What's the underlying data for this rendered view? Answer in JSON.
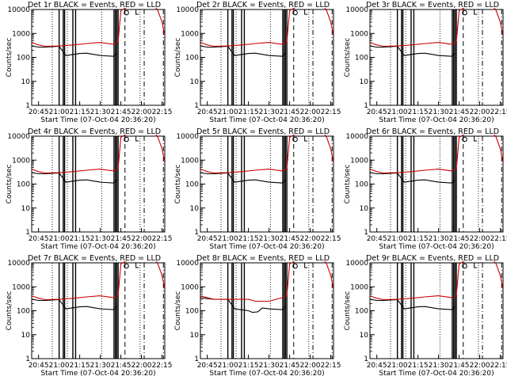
{
  "chart_data": [
    {
      "type": "line",
      "title": "Det 1r BLACK = Events, RED = LLD",
      "xlabel": "Start Time (07-Oct-04 20:36:20)",
      "ylabel": "Counts/sec",
      "yscale": "log",
      "ylim": [
        1,
        10000
      ],
      "xlim": [
        "20:40",
        "22:17"
      ],
      "xticks": [
        "20:45",
        "21:00",
        "21:15",
        "21:30",
        "21:45",
        "22:00",
        "22:15"
      ],
      "yticks": [
        "1",
        "10",
        "100",
        "1000",
        "10000"
      ],
      "series": [
        {
          "name": "BLACK",
          "color": "#000000",
          "x": [
            "20:37",
            "20:40",
            "20:45",
            "20:50",
            "21:00",
            "21:05",
            "21:15",
            "21:20",
            "21:30",
            "21:40",
            "21:42"
          ],
          "y": [
            380,
            300,
            270,
            270,
            290,
            120,
            145,
            150,
            120,
            110,
            150
          ]
        },
        {
          "name": "RED",
          "color": "#cc0000",
          "x": [
            "20:37",
            "20:40",
            "20:45",
            "20:50",
            "21:00",
            "21:10",
            "21:20",
            "21:30",
            "21:40",
            "21:43",
            "21:45",
            "21:50",
            "22:00",
            "22:10",
            "22:12",
            "22:15",
            "22:17"
          ],
          "y": [
            550,
            420,
            330,
            290,
            300,
            330,
            380,
            420,
            350,
            450,
            9000,
            13000,
            13000,
            13000,
            9000,
            3000,
            800
          ]
        }
      ]
    },
    {
      "type": "line",
      "title": "Det 2r BLACK = Events, RED = LLD",
      "xlabel": "Start Time (07-Oct-04 20:36:20)",
      "ylabel": "Counts/sec",
      "yscale": "log",
      "ylim": [
        1,
        10000
      ],
      "xlim": [
        "20:40",
        "22:17"
      ],
      "xticks": [
        "20:45",
        "21:00",
        "21:15",
        "21:30",
        "21:45",
        "22:00",
        "22:15"
      ],
      "yticks": [
        "1",
        "10",
        "100",
        "1000",
        "10000"
      ],
      "series": [
        {
          "name": "BLACK",
          "color": "#000000",
          "x": [
            "20:37",
            "20:40",
            "20:45",
            "20:50",
            "21:00",
            "21:05",
            "21:15",
            "21:20",
            "21:30",
            "21:40",
            "21:42"
          ],
          "y": [
            380,
            300,
            270,
            270,
            290,
            120,
            145,
            150,
            120,
            110,
            150
          ]
        },
        {
          "name": "RED",
          "color": "#cc0000",
          "x": [
            "20:37",
            "20:40",
            "20:45",
            "20:50",
            "21:00",
            "21:10",
            "21:20",
            "21:30",
            "21:40",
            "21:43",
            "21:45",
            "21:50",
            "22:00",
            "22:10",
            "22:12",
            "22:15",
            "22:17"
          ],
          "y": [
            550,
            420,
            330,
            290,
            300,
            330,
            380,
            420,
            350,
            450,
            9000,
            13000,
            13000,
            13000,
            9000,
            3000,
            800
          ]
        }
      ]
    },
    {
      "type": "line",
      "title": "Det 3r BLACK = Events, RED = LLD",
      "xlabel": "Start Time (07-Oct-04 20:36:20)",
      "ylabel": "Counts/sec",
      "yscale": "log",
      "ylim": [
        1,
        10000
      ],
      "xlim": [
        "20:40",
        "22:17"
      ],
      "xticks": [
        "20:45",
        "21:00",
        "21:15",
        "21:30",
        "21:45",
        "22:00",
        "22:15"
      ],
      "yticks": [
        "1",
        "10",
        "100",
        "1000",
        "10000"
      ],
      "series": [
        {
          "name": "BLACK",
          "color": "#000000",
          "x": [
            "20:37",
            "20:40",
            "20:45",
            "20:50",
            "21:00",
            "21:05",
            "21:15",
            "21:20",
            "21:30",
            "21:40",
            "21:42"
          ],
          "y": [
            380,
            300,
            270,
            270,
            290,
            120,
            145,
            150,
            120,
            110,
            150
          ]
        },
        {
          "name": "RED",
          "color": "#cc0000",
          "x": [
            "20:37",
            "20:40",
            "20:45",
            "20:50",
            "21:00",
            "21:10",
            "21:20",
            "21:30",
            "21:40",
            "21:43",
            "21:45",
            "21:50",
            "22:00",
            "22:10",
            "22:12",
            "22:15",
            "22:17"
          ],
          "y": [
            550,
            420,
            330,
            290,
            300,
            330,
            380,
            420,
            350,
            450,
            9000,
            13000,
            13000,
            13000,
            9000,
            3000,
            800
          ]
        }
      ]
    },
    {
      "type": "line",
      "title": "Det 4r BLACK = Events, RED = LLD",
      "xlabel": "Start Time (07-Oct-04 20:36:20)",
      "ylabel": "Counts/sec",
      "yscale": "log",
      "ylim": [
        1,
        10000
      ],
      "xlim": [
        "20:40",
        "22:17"
      ],
      "xticks": [
        "20:45",
        "21:00",
        "21:15",
        "21:30",
        "21:45",
        "22:00",
        "22:15"
      ],
      "yticks": [
        "1",
        "10",
        "100",
        "1000",
        "10000"
      ],
      "series": [
        {
          "name": "BLACK",
          "color": "#000000",
          "x": [
            "20:37",
            "20:40",
            "20:45",
            "20:50",
            "21:00",
            "21:05",
            "21:15",
            "21:20",
            "21:30",
            "21:40",
            "21:42"
          ],
          "y": [
            380,
            300,
            270,
            270,
            290,
            120,
            145,
            150,
            120,
            110,
            150
          ]
        },
        {
          "name": "RED",
          "color": "#cc0000",
          "x": [
            "20:37",
            "20:40",
            "20:45",
            "20:50",
            "21:00",
            "21:10",
            "21:20",
            "21:30",
            "21:40",
            "21:43",
            "21:45",
            "21:50",
            "22:00",
            "22:10",
            "22:12",
            "22:15",
            "22:17"
          ],
          "y": [
            550,
            420,
            330,
            290,
            300,
            330,
            380,
            420,
            350,
            450,
            9000,
            13000,
            13000,
            13000,
            9000,
            3000,
            800
          ]
        }
      ]
    },
    {
      "type": "line",
      "title": "Det 5r BLACK = Events, RED = LLD",
      "xlabel": "Start Time (07-Oct-04 20:36:20)",
      "ylabel": "Counts/sec",
      "yscale": "log",
      "ylim": [
        1,
        10000
      ],
      "xlim": [
        "20:40",
        "22:17"
      ],
      "xticks": [
        "20:45",
        "21:00",
        "21:15",
        "21:30",
        "21:45",
        "22:00",
        "22:15"
      ],
      "yticks": [
        "1",
        "10",
        "100",
        "1000",
        "10000"
      ],
      "series": [
        {
          "name": "BLACK",
          "color": "#000000",
          "x": [
            "20:37",
            "20:40",
            "20:45",
            "20:50",
            "21:00",
            "21:05",
            "21:15",
            "21:20",
            "21:30",
            "21:40",
            "21:42"
          ],
          "y": [
            380,
            300,
            270,
            270,
            290,
            120,
            145,
            150,
            120,
            110,
            150
          ]
        },
        {
          "name": "RED",
          "color": "#cc0000",
          "x": [
            "20:37",
            "20:40",
            "20:45",
            "20:50",
            "21:00",
            "21:10",
            "21:20",
            "21:30",
            "21:40",
            "21:43",
            "21:45",
            "21:50",
            "22:00",
            "22:10",
            "22:12",
            "22:15",
            "22:17"
          ],
          "y": [
            550,
            420,
            330,
            290,
            300,
            330,
            380,
            420,
            350,
            450,
            9000,
            13000,
            13000,
            13000,
            9000,
            3000,
            800
          ]
        }
      ]
    },
    {
      "type": "line",
      "title": "Det 6r BLACK = Events, RED = LLD",
      "xlabel": "Start Time (07-Oct-04 20:36:20)",
      "ylabel": "Counts/sec",
      "yscale": "log",
      "ylim": [
        1,
        10000
      ],
      "xlim": [
        "20:40",
        "22:17"
      ],
      "xticks": [
        "20:45",
        "21:00",
        "21:15",
        "21:30",
        "21:45",
        "22:00",
        "22:15"
      ],
      "yticks": [
        "1",
        "10",
        "100",
        "1000",
        "10000"
      ],
      "series": [
        {
          "name": "BLACK",
          "color": "#000000",
          "x": [
            "20:37",
            "20:40",
            "20:45",
            "20:50",
            "21:00",
            "21:05",
            "21:15",
            "21:20",
            "21:30",
            "21:40",
            "21:42"
          ],
          "y": [
            380,
            300,
            270,
            270,
            290,
            120,
            145,
            150,
            120,
            110,
            150
          ]
        },
        {
          "name": "RED",
          "color": "#cc0000",
          "x": [
            "20:37",
            "20:40",
            "20:45",
            "20:50",
            "21:00",
            "21:10",
            "21:20",
            "21:30",
            "21:40",
            "21:43",
            "21:45",
            "21:50",
            "22:00",
            "22:10",
            "22:12",
            "22:15",
            "22:17"
          ],
          "y": [
            550,
            420,
            330,
            290,
            300,
            330,
            380,
            420,
            350,
            450,
            9000,
            13000,
            13000,
            13000,
            9000,
            3000,
            800
          ]
        }
      ]
    },
    {
      "type": "line",
      "title": "Det 7r BLACK = Events, RED = LLD",
      "xlabel": "Start Time (07-Oct-04 20:36:20)",
      "ylabel": "Counts/sec",
      "yscale": "log",
      "ylim": [
        1,
        10000
      ],
      "xlim": [
        "20:40",
        "22:17"
      ],
      "xticks": [
        "20:45",
        "21:00",
        "21:15",
        "21:30",
        "21:45",
        "22:00",
        "22:15"
      ],
      "yticks": [
        "1",
        "10",
        "100",
        "1000",
        "10000"
      ],
      "series": [
        {
          "name": "BLACK",
          "color": "#000000",
          "x": [
            "20:37",
            "20:40",
            "20:45",
            "20:50",
            "21:00",
            "21:05",
            "21:15",
            "21:20",
            "21:30",
            "21:40",
            "21:42"
          ],
          "y": [
            380,
            300,
            270,
            270,
            290,
            120,
            145,
            150,
            120,
            110,
            150
          ]
        },
        {
          "name": "RED",
          "color": "#cc0000",
          "x": [
            "20:37",
            "20:40",
            "20:45",
            "20:50",
            "21:00",
            "21:10",
            "21:20",
            "21:30",
            "21:40",
            "21:43",
            "21:45",
            "21:50",
            "22:00",
            "22:10",
            "22:12",
            "22:15",
            "22:17"
          ],
          "y": [
            550,
            420,
            330,
            290,
            300,
            330,
            380,
            420,
            350,
            450,
            9000,
            13000,
            13000,
            13000,
            9000,
            3000,
            800
          ]
        }
      ]
    },
    {
      "type": "line",
      "title": "Det 8r BLACK = Events, RED = LLD",
      "xlabel": "Start Time (07-Oct-04 20:36:20)",
      "ylabel": "Counts/sec",
      "yscale": "log",
      "ylim": [
        1,
        10000
      ],
      "xlim": [
        "20:40",
        "22:17"
      ],
      "xticks": [
        "20:45",
        "21:00",
        "21:15",
        "21:30",
        "21:45",
        "22:00",
        "22:15"
      ],
      "yticks": [
        "1",
        "10",
        "100",
        "1000",
        "10000"
      ],
      "series": [
        {
          "name": "BLACK",
          "color": "#000000",
          "x": [
            "20:37",
            "20:40",
            "20:45",
            "20:50",
            "21:00",
            "21:05",
            "21:15",
            "21:18",
            "21:22",
            "21:25",
            "21:30",
            "21:35",
            "21:40",
            "21:42"
          ],
          "y": [
            400,
            350,
            320,
            300,
            300,
            120,
            100,
            85,
            90,
            130,
            120,
            115,
            110,
            150
          ]
        },
        {
          "name": "RED",
          "color": "#cc0000",
          "x": [
            "20:37",
            "20:40",
            "20:45",
            "20:50",
            "21:00",
            "21:10",
            "21:15",
            "21:20",
            "21:30",
            "21:35",
            "21:40",
            "21:43",
            "21:45",
            "21:50",
            "22:00",
            "22:10",
            "22:12",
            "22:15",
            "22:17"
          ],
          "y": [
            550,
            420,
            350,
            300,
            300,
            300,
            300,
            250,
            250,
            300,
            350,
            450,
            9000,
            13000,
            13000,
            13000,
            9000,
            3000,
            800
          ]
        }
      ]
    },
    {
      "type": "line",
      "title": "Det 9r BLACK = Events, RED = LLD",
      "xlabel": "Start Time (07-Oct-04 20:36:20)",
      "ylabel": "Counts/sec",
      "yscale": "log",
      "ylim": [
        1,
        10000
      ],
      "xlim": [
        "20:40",
        "22:17"
      ],
      "xticks": [
        "20:45",
        "21:00",
        "21:15",
        "21:30",
        "21:45",
        "22:00",
        "22:15"
      ],
      "yticks": [
        "1",
        "10",
        "100",
        "1000",
        "10000"
      ],
      "series": [
        {
          "name": "BLACK",
          "color": "#000000",
          "x": [
            "20:37",
            "20:40",
            "20:45",
            "20:50",
            "21:00",
            "21:05",
            "21:15",
            "21:20",
            "21:30",
            "21:40",
            "21:42"
          ],
          "y": [
            380,
            300,
            270,
            270,
            290,
            120,
            145,
            150,
            120,
            110,
            150
          ]
        },
        {
          "name": "RED",
          "color": "#cc0000",
          "x": [
            "20:37",
            "20:40",
            "20:45",
            "20:50",
            "21:00",
            "21:10",
            "21:20",
            "21:30",
            "21:40",
            "21:43",
            "21:45",
            "21:50",
            "22:00",
            "22:10",
            "22:12",
            "22:15",
            "22:17"
          ],
          "y": [
            550,
            420,
            330,
            290,
            300,
            330,
            380,
            420,
            350,
            450,
            9000,
            13000,
            13000,
            13000,
            9000,
            3000,
            800
          ]
        }
      ]
    }
  ]
}
